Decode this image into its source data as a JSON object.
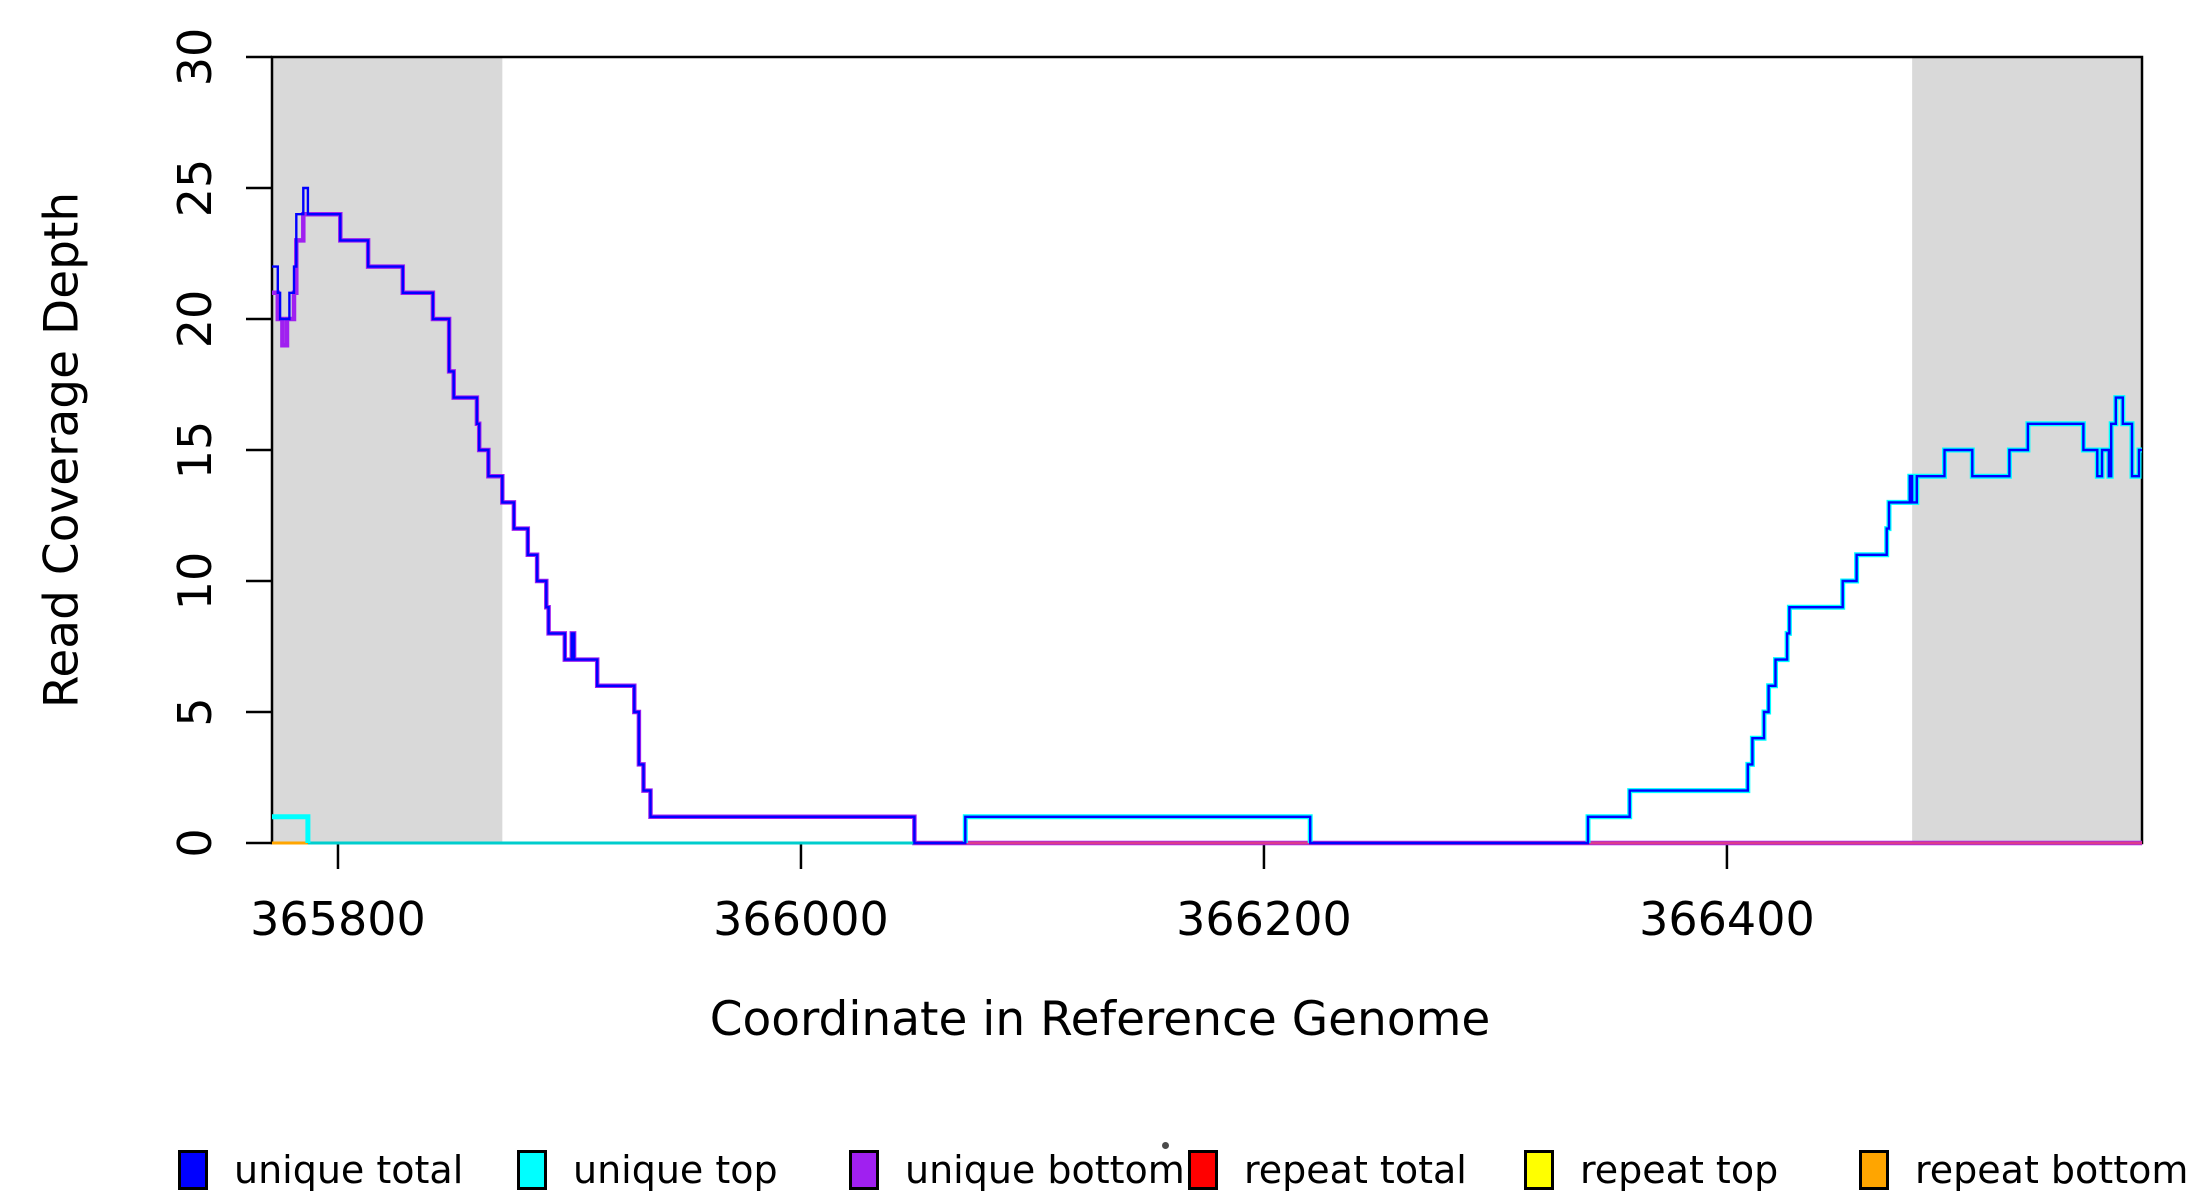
{
  "chart_data": {
    "type": "line",
    "subtype": "step-coverage-plot",
    "title": "",
    "xlabel": "Coordinate in Reference Genome",
    "ylabel": "Read Coverage Depth",
    "xlim": [
      365771.5,
      366579.3
    ],
    "ylim": [
      0,
      30
    ],
    "x_ticks": [
      365800,
      366000,
      366200,
      366400
    ],
    "y_ticks": [
      0,
      5,
      10,
      15,
      20,
      25,
      30
    ],
    "grid": false,
    "background_color": "#ffffff",
    "shaded_region_color": "#d9d9d9",
    "shaded_regions": [
      {
        "from": 365771.5,
        "to": 365871
      },
      {
        "from": 366480,
        "to": 366579.3
      }
    ],
    "baseline_segments": [
      {
        "from": 365787,
        "to": 366049,
        "color": "#00cdcd"
      },
      {
        "from": 366049,
        "to": 366579.3,
        "color": "#dc3c8c"
      },
      {
        "from": 365771.5,
        "to": 365787,
        "color": "#ffa500"
      }
    ],
    "series": [
      {
        "name": "unique total",
        "color": "#0000ff",
        "line_width": 2.4,
        "segments": [
          {
            "steps": [
              [
                365771.5,
                22
              ],
              [
                365774,
                21
              ],
              [
                365775,
                20
              ],
              [
                365779,
                21
              ],
              [
                365781,
                22
              ],
              [
                365782,
                24
              ],
              [
                365785,
                25
              ],
              [
                365787,
                24
              ],
              [
                365801,
                23
              ],
              [
                365813,
                22
              ],
              [
                365828,
                21
              ],
              [
                365841,
                20
              ],
              [
                365848,
                18
              ],
              [
                365850,
                17
              ],
              [
                365860,
                16
              ],
              [
                365861,
                15
              ],
              [
                365865,
                14
              ],
              [
                365871,
                13
              ],
              [
                365876,
                12
              ],
              [
                365882,
                11
              ],
              [
                365886,
                10
              ],
              [
                365890,
                9
              ],
              [
                365891,
                8
              ],
              [
                365898,
                7
              ],
              [
                365901,
                8
              ],
              [
                365902,
                7
              ],
              [
                365912,
                6
              ],
              [
                365928,
                5
              ],
              [
                365930,
                3
              ],
              [
                365932,
                2
              ],
              [
                365935,
                1
              ],
              [
                366049,
                0
              ],
              [
                366071,
                1
              ],
              [
                366220,
                0
              ],
              [
                366340,
                1
              ],
              [
                366358,
                2
              ],
              [
                366409,
                3
              ],
              [
                366411,
                4
              ],
              [
                366416,
                5
              ],
              [
                366418,
                6
              ],
              [
                366421,
                7
              ],
              [
                366426,
                8
              ],
              [
                366427,
                9
              ],
              [
                366450,
                10
              ],
              [
                366456,
                11
              ],
              [
                366469,
                12
              ],
              [
                366470,
                13
              ],
              [
                366479,
                14
              ],
              [
                366480,
                13
              ],
              [
                366482,
                14
              ],
              [
                366494,
                15
              ],
              [
                366506,
                14
              ],
              [
                366522,
                15
              ],
              [
                366530,
                16
              ],
              [
                366554,
                15
              ],
              [
                366560,
                14
              ],
              [
                366562,
                15
              ],
              [
                366565,
                14
              ],
              [
                366566,
                16
              ],
              [
                366568,
                17
              ],
              [
                366571,
                16
              ],
              [
                366575,
                14
              ],
              [
                366578,
                15
              ]
            ],
            "end": 366579.3
          }
        ]
      },
      {
        "name": "unique top",
        "color": "#00ffff",
        "line_width": 5,
        "segments": [
          {
            "steps": [
              [
                365771.5,
                1
              ],
              [
                365787,
                0
              ]
            ],
            "end": 365787
          },
          {
            "steps": [
              [
                366071,
                0
              ],
              [
                366071,
                1
              ],
              [
                366220,
                0
              ]
            ],
            "end": 366220
          },
          {
            "steps": [
              [
                366340,
                0
              ],
              [
                366340,
                1
              ],
              [
                366358,
                2
              ],
              [
                366409,
                3
              ],
              [
                366411,
                4
              ],
              [
                366416,
                5
              ],
              [
                366418,
                6
              ],
              [
                366421,
                7
              ],
              [
                366426,
                8
              ],
              [
                366427,
                9
              ],
              [
                366450,
                10
              ],
              [
                366456,
                11
              ],
              [
                366469,
                12
              ],
              [
                366470,
                13
              ],
              [
                366479,
                14
              ],
              [
                366480,
                13
              ],
              [
                366482,
                14
              ],
              [
                366494,
                15
              ],
              [
                366506,
                14
              ],
              [
                366522,
                15
              ],
              [
                366530,
                16
              ],
              [
                366554,
                15
              ],
              [
                366560,
                14
              ],
              [
                366562,
                15
              ],
              [
                366565,
                14
              ],
              [
                366566,
                16
              ],
              [
                366568,
                17
              ],
              [
                366571,
                16
              ],
              [
                366575,
                14
              ],
              [
                366578,
                15
              ]
            ],
            "end": 366579.3
          }
        ]
      },
      {
        "name": "unique bottom",
        "color": "#a020f0",
        "line_width": 4.5,
        "segments": [
          {
            "steps": [
              [
                365771.5,
                21
              ],
              [
                365774,
                20
              ],
              [
                365776,
                19
              ],
              [
                365778,
                20
              ],
              [
                365781,
                21
              ],
              [
                365782,
                23
              ],
              [
                365785,
                24
              ],
              [
                365801,
                23
              ],
              [
                365813,
                22
              ],
              [
                365828,
                21
              ],
              [
                365841,
                20
              ],
              [
                365848,
                18
              ],
              [
                365850,
                17
              ],
              [
                365860,
                16
              ],
              [
                365861,
                15
              ],
              [
                365865,
                14
              ],
              [
                365871,
                13
              ],
              [
                365876,
                12
              ],
              [
                365882,
                11
              ],
              [
                365886,
                10
              ],
              [
                365890,
                9
              ],
              [
                365891,
                8
              ],
              [
                365898,
                7
              ],
              [
                365901,
                8
              ],
              [
                365902,
                7
              ],
              [
                365912,
                6
              ],
              [
                365928,
                5
              ],
              [
                365930,
                3
              ],
              [
                365932,
                2
              ],
              [
                365935,
                1
              ],
              [
                366049,
                0
              ]
            ],
            "end": 366579.3
          }
        ]
      },
      {
        "name": "repeat total",
        "color": "#ff0000",
        "line_width": 2.4,
        "segments": [
          {
            "steps": [
              [
                365771.5,
                0
              ]
            ],
            "end": 366579.3
          }
        ]
      },
      {
        "name": "repeat top",
        "color": "#ffff00",
        "line_width": 2.4,
        "segments": [
          {
            "steps": [
              [
                365771.5,
                0
              ]
            ],
            "end": 366579.3
          }
        ]
      },
      {
        "name": "repeat bottom",
        "color": "#ffa500",
        "line_width": 3,
        "segments": [
          {
            "steps": [
              [
                365771.5,
                0
              ]
            ],
            "end": 365787
          }
        ]
      }
    ]
  },
  "legend": {
    "items": [
      {
        "label": "unique total",
        "color": "#0000ff"
      },
      {
        "label": "unique top",
        "color": "#00ffff"
      },
      {
        "label": "unique bottom",
        "color": "#a020f0"
      },
      {
        "label": "repeat total",
        "color": "#ff0000"
      },
      {
        "label": "repeat top",
        "color": "#ffff00"
      },
      {
        "label": "repeat bottom",
        "color": "#ffa500"
      }
    ]
  }
}
